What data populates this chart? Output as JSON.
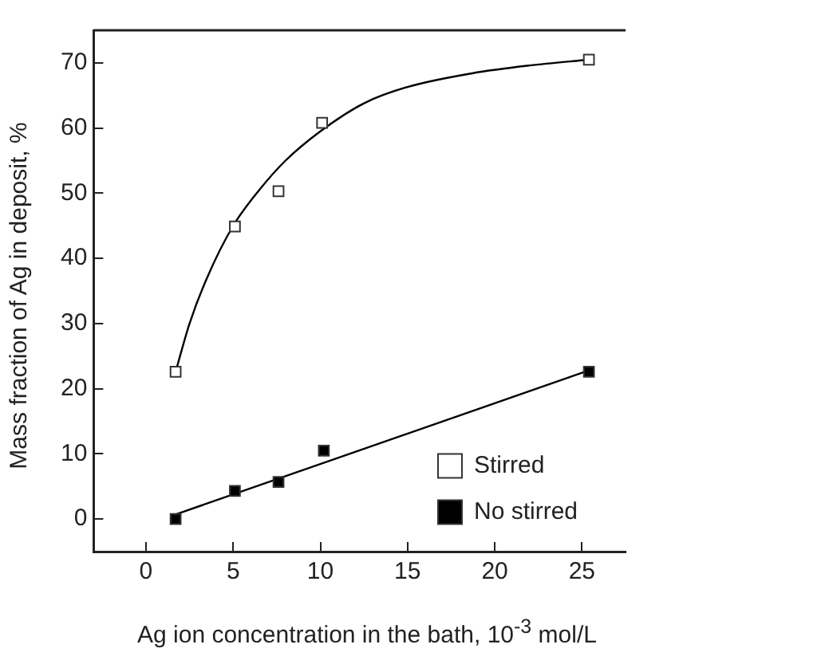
{
  "chart_data": {
    "type": "scatter",
    "xlabel": "Ag ion concentration in the bath, 10$^{-3}$ mol/L",
    "ylabel": "Mass fraction of Ag in deposit, %",
    "xlim": [
      -3,
      27.5
    ],
    "xticks": [
      0,
      5,
      10,
      15,
      20,
      25
    ],
    "ylim": [
      -5,
      75
    ],
    "yticks": [
      0,
      10,
      20,
      30,
      40,
      50,
      60,
      70
    ],
    "grid": false,
    "legend": "right",
    "marker": "square",
    "series": [
      {
        "name": "Stirred",
        "color": "#ffffff",
        "x": [
          1.7,
          5.1,
          7.6,
          10.1,
          25.4
        ],
        "values": [
          22.6,
          44.9,
          50.3,
          60.8,
          70.5
        ]
      },
      {
        "name": "No stirred",
        "color": "#000000",
        "x": [
          1.7,
          5.1,
          7.6,
          10.2,
          25.4
        ],
        "values": [
          0,
          4.3,
          5.7,
          10.5,
          22.6
        ]
      },
      {
        "type": "line",
        "color": "#000000",
        "marker": "none",
        "x": [
          1.7,
          2.5,
          3.5,
          5,
          6.5,
          8,
          10,
          12.5,
          15,
          18.7,
          22,
          25.4
        ],
        "values": [
          22.6,
          30,
          37,
          45,
          50.5,
          55,
          59.5,
          63.8,
          66.3,
          68.4,
          69.6,
          70.5
        ]
      },
      {
        "type": "line",
        "color": "#000000",
        "marker": "none",
        "x": [
          1.7,
          25.4
        ],
        "values": [
          0.7,
          22.8
        ]
      }
    ]
  }
}
